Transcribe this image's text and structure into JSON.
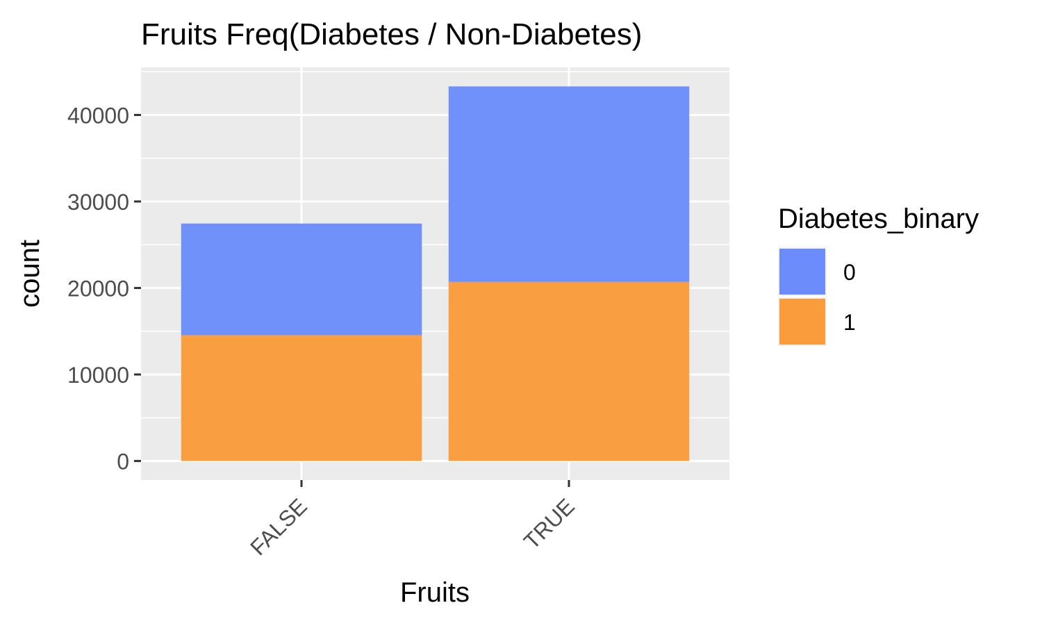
{
  "chart_data": {
    "type": "bar",
    "stacked": true,
    "title": "Fruits Freq(Diabetes / Non-Diabetes)",
    "xlabel": "Fruits",
    "ylabel": "count",
    "categories": [
      "FALSE",
      "TRUE"
    ],
    "series": [
      {
        "name": "0",
        "values": [
          12900,
          22600
        ],
        "color": "#6b8cfa"
      },
      {
        "name": "1",
        "values": [
          14550,
          20700
        ],
        "color": "#fa9b3c"
      }
    ],
    "stack_order_bottom_to_top": [
      "1",
      "0"
    ],
    "ylim": [
      -2200,
      45500
    ],
    "yticks": [
      0,
      10000,
      20000,
      30000,
      40000
    ],
    "ytick_labels": [
      "0",
      "10000",
      "20000",
      "30000",
      "40000"
    ],
    "grid": true,
    "panel_background": "#ebebeb",
    "legend": {
      "title": "Diabetes_binary",
      "position": "right",
      "entries": [
        "0",
        "1"
      ]
    }
  }
}
